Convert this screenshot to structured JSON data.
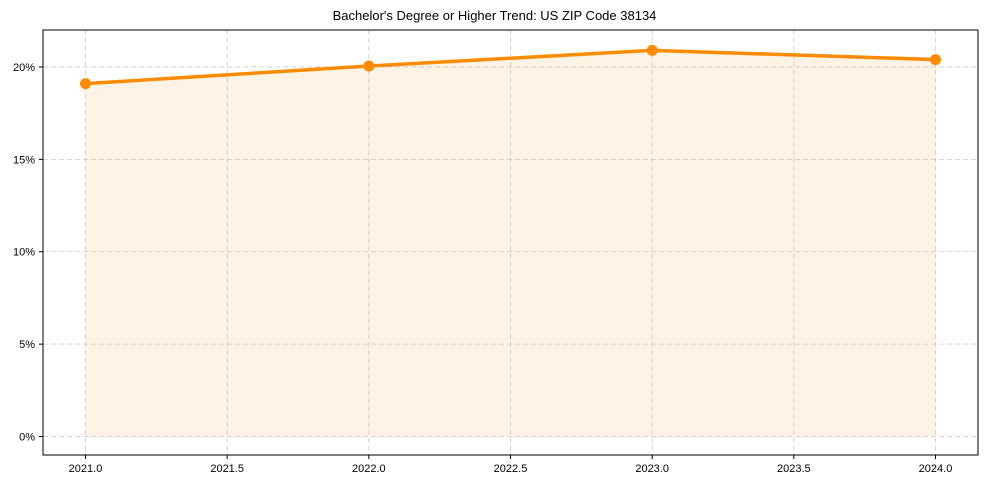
{
  "chart_data": {
    "type": "line",
    "title": "Bachelor's Degree or Higher Trend: US ZIP Code 38134",
    "xlabel": "",
    "ylabel": "",
    "x": [
      2021,
      2022,
      2023,
      2024
    ],
    "series": [
      {
        "name": "Bachelor's Degree or Higher",
        "values": [
          19.1,
          20.05,
          20.9,
          20.4
        ],
        "color": "#ff8c00",
        "fill": true
      }
    ],
    "xticks": [
      "2021.0",
      "2021.5",
      "2022.0",
      "2022.5",
      "2023.0",
      "2023.5",
      "2024.0"
    ],
    "xtick_values": [
      2021.0,
      2021.5,
      2022.0,
      2022.5,
      2023.0,
      2023.5,
      2024.0
    ],
    "yticks": [
      "0%",
      "5%",
      "10%",
      "15%",
      "20%"
    ],
    "ytick_values": [
      0,
      5,
      10,
      15,
      20
    ],
    "xlim": [
      2020.85,
      2024.15
    ],
    "ylim": [
      -1.0,
      22.0
    ],
    "grid": true,
    "legend": null
  }
}
